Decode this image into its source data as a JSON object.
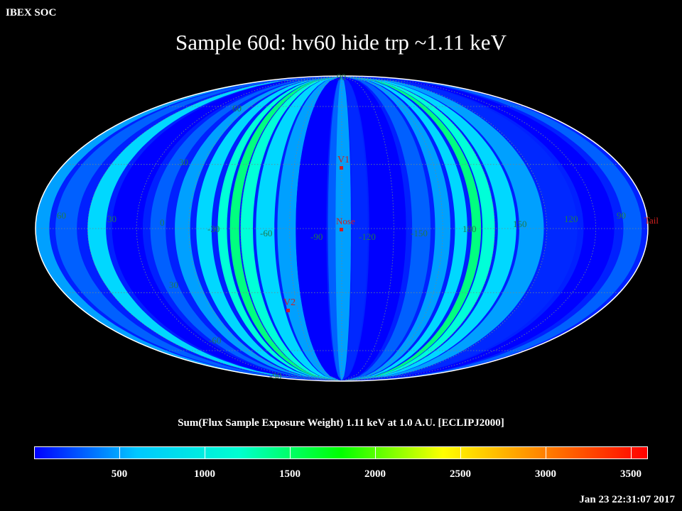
{
  "header": {
    "corner_label": "IBEX SOC"
  },
  "map": {
    "title": "Sample 60d: hv60 hide trp ~1.11 keV",
    "projection": "Mollweide (ellipse)",
    "grid_labels_lat": [
      "90",
      "60",
      "30",
      "0",
      "30",
      "-60",
      "-90"
    ],
    "grid_labels_lon": [
      "60",
      "30",
      "0",
      "-30",
      "-60",
      "-90",
      "-120",
      "-150",
      "180",
      "150",
      "120",
      "90"
    ],
    "markers": [
      {
        "label": "V1"
      },
      {
        "label": "Nose"
      },
      {
        "label": "Tail"
      },
      {
        "label": "V2"
      }
    ]
  },
  "colorbar": {
    "title": "Sum(Flux Sample Exposure Weight)  1.11 keV at 1.0 A.U. [ECLIPJ2000]",
    "ticks": [
      "500",
      "1000",
      "1500",
      "2000",
      "2500",
      "3000",
      "3500"
    ],
    "range": [
      0,
      3600
    ],
    "colors": [
      "#0000ff",
      "#00c8ff",
      "#00ffd0",
      "#00ff00",
      "#ffff00",
      "#ff8000",
      "#ff0000"
    ]
  },
  "footer": {
    "timestamp": "Jan 23 22:31:07 2017"
  }
}
